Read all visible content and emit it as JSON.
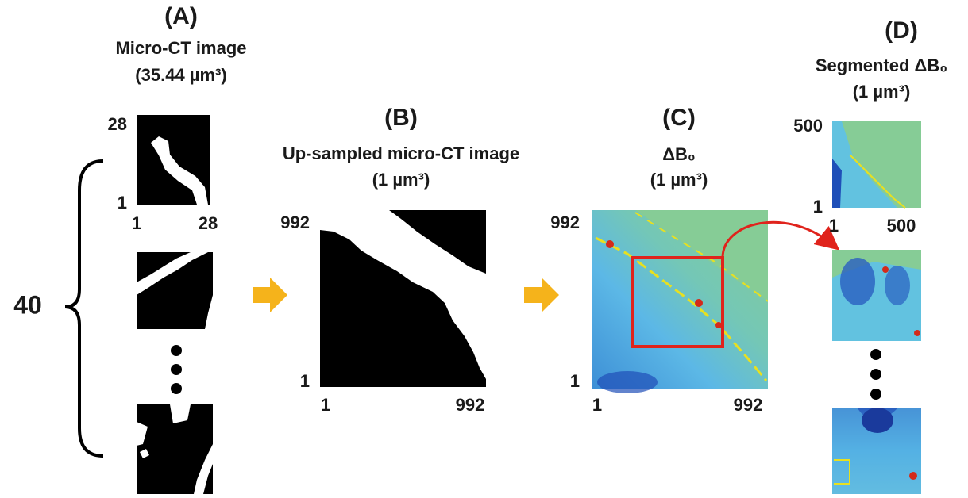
{
  "panels": [
    {
      "letter": "(A)",
      "title": "Micro-CT image",
      "resolution": "(35.44 µm³)",
      "y_ticks": [
        "28",
        "1"
      ],
      "x_ticks": [
        "1",
        "28"
      ],
      "count": "40"
    },
    {
      "letter": "(B)",
      "title": "Up-sampled micro-CT image",
      "resolution": "(1 µm³)",
      "y_ticks": [
        "992",
        "1"
      ],
      "x_ticks": [
        "1",
        "992"
      ]
    },
    {
      "letter": "(C)",
      "title": "ΔB₀",
      "resolution": "(1 µm³)",
      "y_ticks": [
        "992",
        "1"
      ],
      "x_ticks": [
        "1",
        "992"
      ]
    },
    {
      "letter": "(D)",
      "title": "Segmented ΔB₀",
      "resolution": "(1 µm³)",
      "y_ticks": [
        "500",
        "1"
      ],
      "x_ticks": [
        "1",
        "500"
      ]
    }
  ]
}
